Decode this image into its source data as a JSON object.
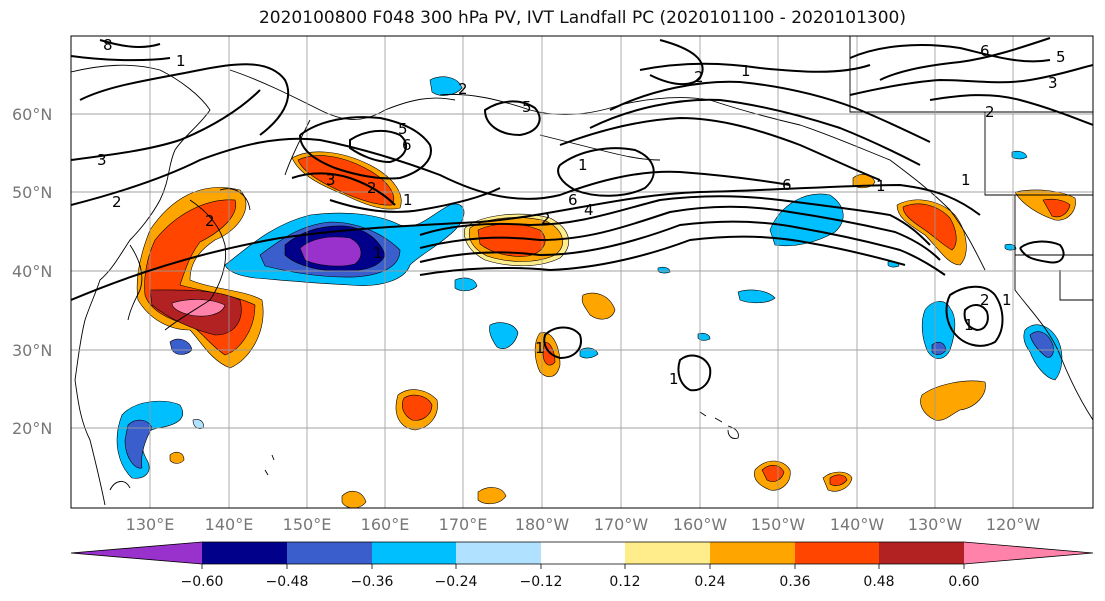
{
  "title": "2020100800 F048 300 hPa PV, IVT Landfall PC (2020101100 - 2020101300)",
  "map": {
    "lat_labels": [
      "60°N",
      "50°N",
      "40°N",
      "30°N",
      "20°N"
    ],
    "lon_labels": [
      "130°E",
      "140°E",
      "150°E",
      "160°E",
      "170°E",
      "180°W",
      "170°W",
      "160°W",
      "150°W",
      "140°W",
      "130°W",
      "120°W"
    ],
    "contour_labels": [
      "8",
      "1",
      "3",
      "2",
      "2",
      "5",
      "5",
      "6",
      "2",
      "1",
      "6",
      "5",
      "3",
      "2",
      "1",
      "3",
      "2",
      "1",
      "2",
      "6",
      "4",
      "1",
      "6",
      "1",
      "1",
      "2",
      "1",
      "1",
      "2",
      "1",
      "1"
    ]
  },
  "colorbar": {
    "tick_labels": [
      "−0.60",
      "−0.48",
      "−0.36",
      "−0.24",
      "−0.12",
      "0.12",
      "0.24",
      "0.36",
      "0.48",
      "0.60"
    ],
    "colors": [
      "#9932cc",
      "#00008b",
      "#3a5fcd",
      "#00bfff",
      "#b0e2ff",
      "#ffffff",
      "#ffec8b",
      "#ffa500",
      "#ff4500",
      "#b22222",
      "#ff82ab"
    ]
  }
}
